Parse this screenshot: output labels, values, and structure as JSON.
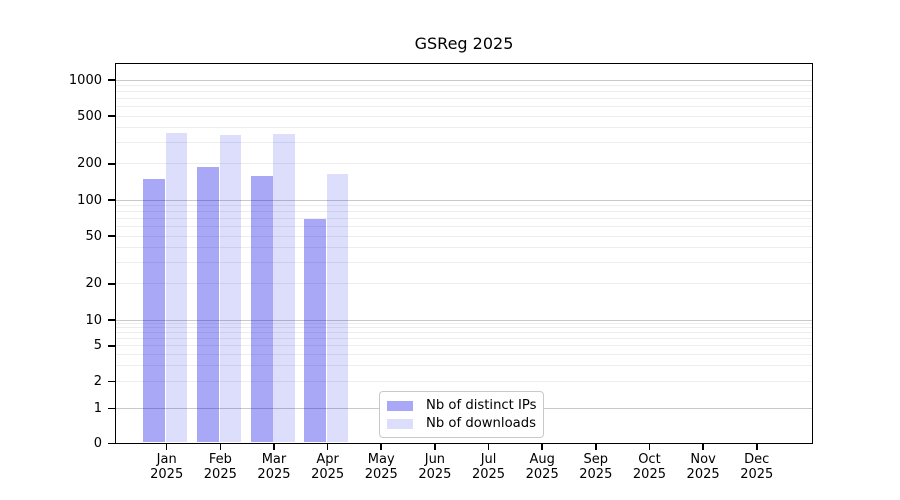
{
  "chart_data": {
    "type": "bar",
    "title": "GSReg 2025",
    "year": "2025",
    "categories": [
      "Jan",
      "Feb",
      "Mar",
      "Apr",
      "May",
      "Jun",
      "Jul",
      "Aug",
      "Sep",
      "Oct",
      "Nov",
      "Dec"
    ],
    "series": [
      {
        "name": "Nb of distinct IPs",
        "color": "rgba(0,0,230,0.34)",
        "values": [
          150,
          190,
          160,
          70,
          null,
          null,
          null,
          null,
          null,
          null,
          null,
          null
        ]
      },
      {
        "name": "Nb of downloads",
        "color": "rgba(0,0,230,0.135)",
        "values": [
          360,
          350,
          355,
          165,
          null,
          null,
          null,
          null,
          null,
          null,
          null,
          null
        ]
      }
    ],
    "yscale": "log-above-1-linear-below",
    "yticks": [
      0,
      1,
      2,
      5,
      10,
      20,
      50,
      100,
      200,
      500,
      1000
    ],
    "ylim": [
      0,
      1400
    ],
    "xlabel": "",
    "ylabel": "",
    "grid": "horizontal major and minor gridlines",
    "legend": {
      "position": "lower center",
      "entries": [
        "Nb of distinct IPs",
        "Nb of downloads"
      ]
    }
  }
}
